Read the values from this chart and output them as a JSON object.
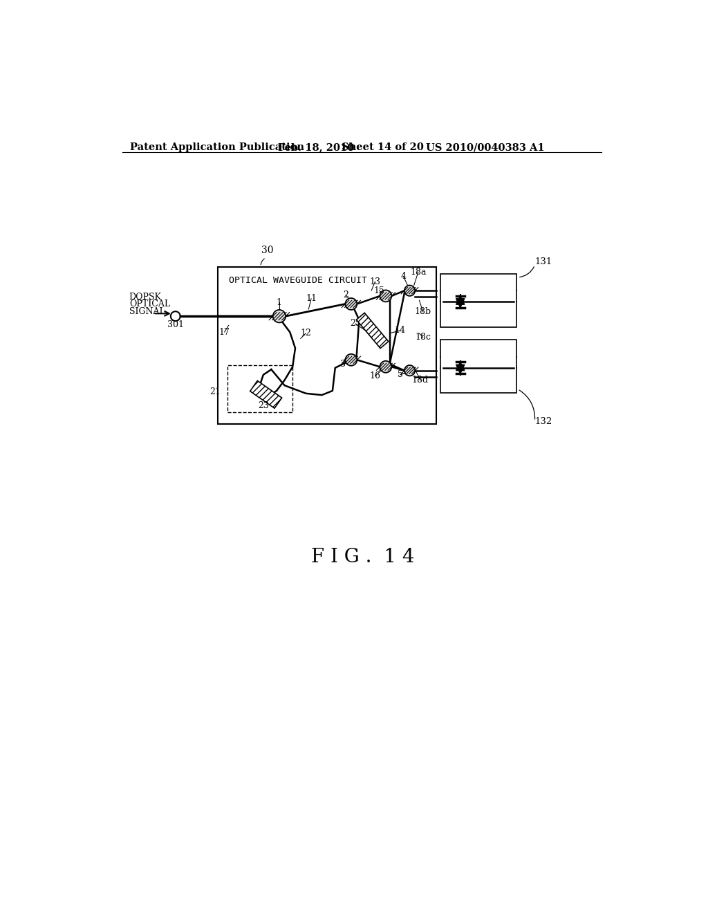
{
  "bg_color": "#ffffff",
  "header_text1": "Patent Application Publication",
  "header_text2": "Feb. 18, 2010",
  "header_text3": "Sheet 14 of 20",
  "header_text4": "US 2010/0040383 A1",
  "figure_label": "F I G .  1 4",
  "diagram_title": "OPTICAL WAVEGUIDE CIRCUIT",
  "diagram_label": "30",
  "input_label1": "DQPSK",
  "input_label2": "OPTICAL",
  "input_label3": "SIGNAL",
  "node_label": "301",
  "label_131": "131",
  "label_132": "132"
}
